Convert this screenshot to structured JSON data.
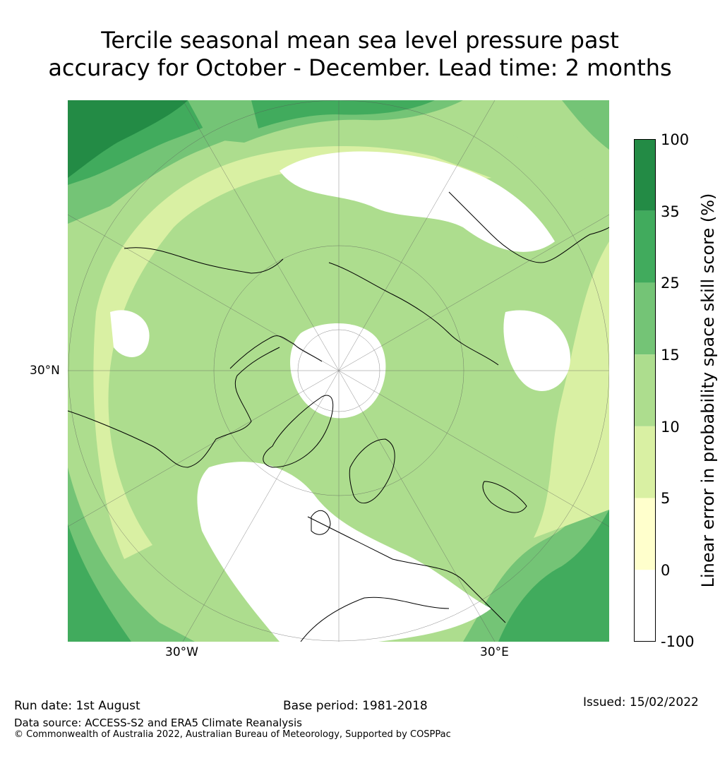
{
  "title": {
    "line1": "Tercile seasonal mean sea level pressure past",
    "line2": "accuracy for October - December. Lead time: 2 months"
  },
  "map": {
    "projection": "north-polar-stereographic",
    "lat_label": "30°N",
    "lon_labels": [
      "30°W",
      "30°E"
    ]
  },
  "colorbar": {
    "title": "Linear error in probability space skill score (%)",
    "ticks": [
      "100",
      "35",
      "25",
      "15",
      "10",
      "5",
      "0",
      "-100"
    ],
    "bins": [
      {
        "range": "35 to 100",
        "color": "#238b45"
      },
      {
        "range": "25 to 35",
        "color": "#41ab5d"
      },
      {
        "range": "15 to 25",
        "color": "#74c476"
      },
      {
        "range": "10 to 15",
        "color": "#addd8e"
      },
      {
        "range": "5 to 10",
        "color": "#d9f0a3"
      },
      {
        "range": "0 to 5",
        "color": "#ffffcc"
      },
      {
        "range": "-100 to 0",
        "color": "#ffffff"
      }
    ]
  },
  "footer": {
    "run_date": "Run date: 1st August",
    "base_period": "Base period: 1981-2018",
    "issued": "Issued: 15/02/2022",
    "data_source": "Data source: ACCESS-S2 and ERA5 Climate Reanalysis",
    "copyright": "© Commonwealth of Australia 2022, Australian Bureau of Meteorology, Supported by COSPPac"
  }
}
